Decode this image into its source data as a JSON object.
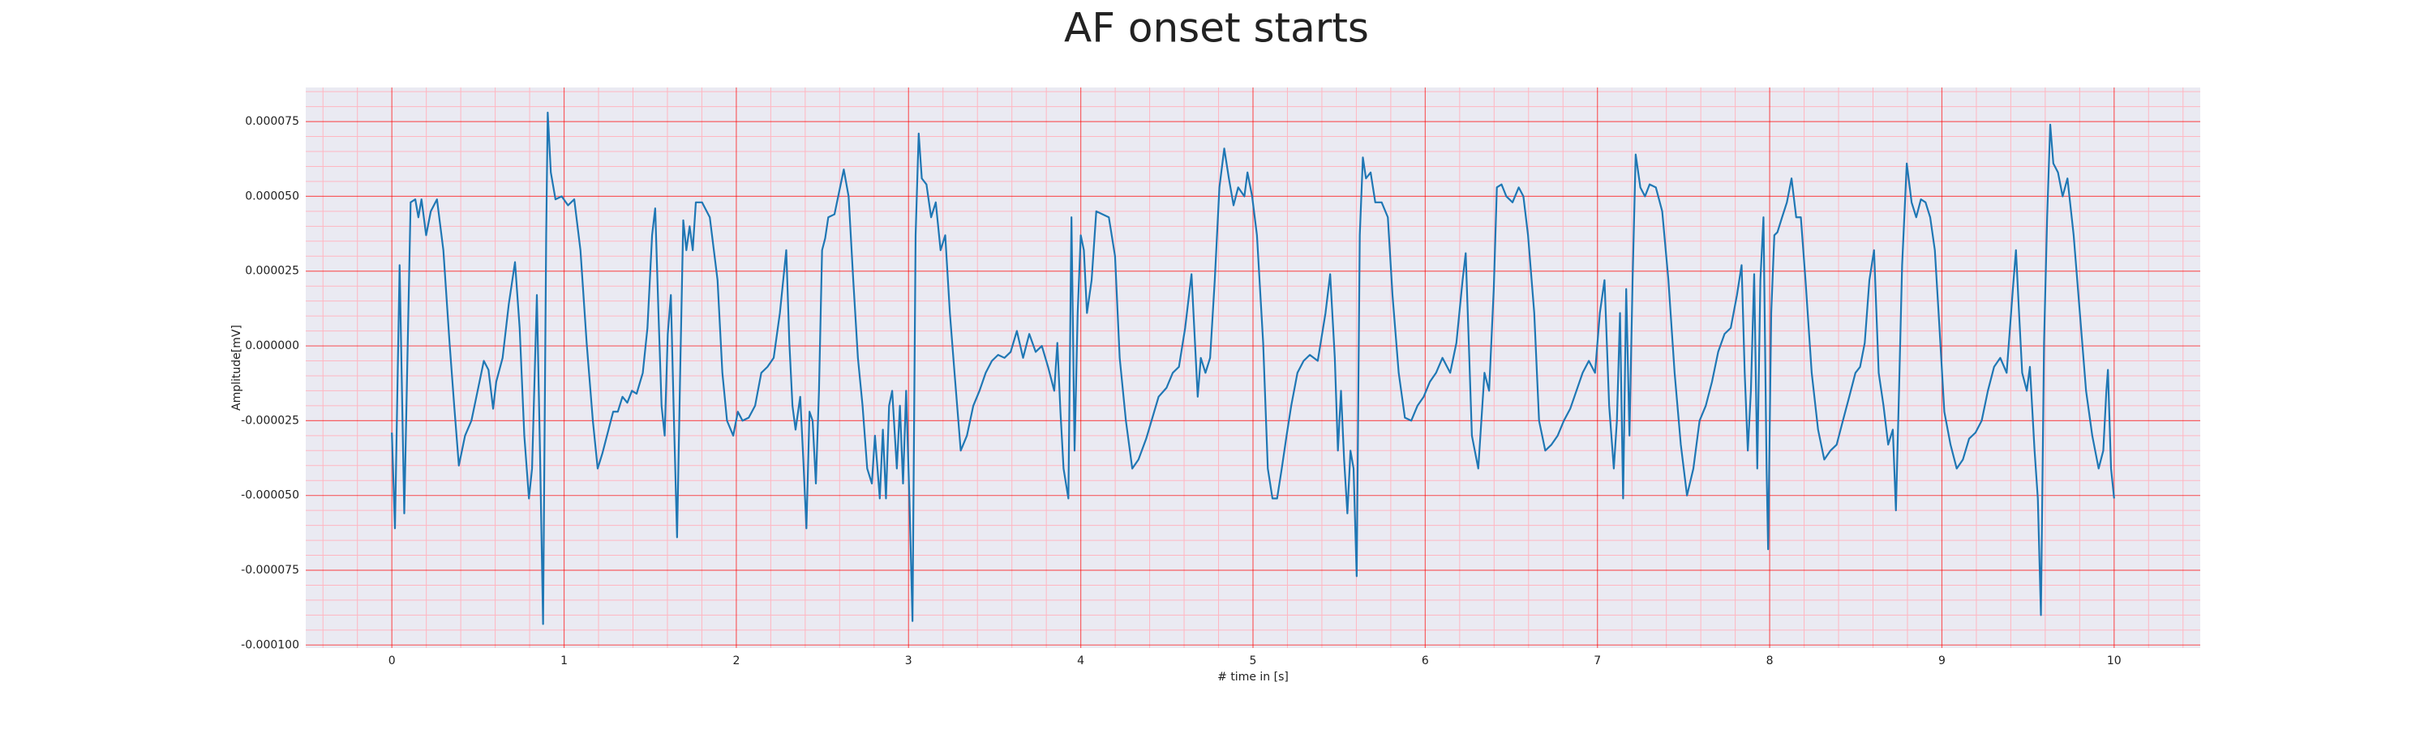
{
  "chart_data": {
    "type": "line",
    "title": "AF onset starts",
    "x_label": "# time in [s]",
    "y_label": "Amplitude[mV]",
    "color": "#1f77b4",
    "background": "#eaeaf2",
    "grid": true,
    "major_grid_color": "#ff0000",
    "minor_grid_color": "#ffb6c1",
    "xlim": [
      -0.5,
      10.5
    ],
    "ylim": [
      -0.000101,
      8.64e-05
    ],
    "xticks": [
      0,
      1,
      2,
      3,
      4,
      5,
      6,
      7,
      8,
      9,
      10
    ],
    "yticks": [
      {
        "value": -0.0001,
        "label": "-0.000100"
      },
      {
        "value": -7.5e-05,
        "label": "-0.000075"
      },
      {
        "value": -5e-05,
        "label": "-0.000050"
      },
      {
        "value": -2.5e-05,
        "label": "-0.000025"
      },
      {
        "value": 0,
        "label": "0.000000"
      },
      {
        "value": 2.5e-05,
        "label": "0.000025"
      },
      {
        "value": 5e-05,
        "label": "0.000050"
      },
      {
        "value": 7.5e-05,
        "label": "0.000075"
      }
    ],
    "xminorticks": [
      -0.4,
      -0.2,
      0.2,
      0.4,
      0.6,
      0.8,
      1.2,
      1.4,
      1.6,
      1.8,
      2.2,
      2.4,
      2.6,
      2.8,
      3.2,
      3.4,
      3.6,
      3.8,
      4.2,
      4.4,
      4.6,
      4.8,
      5.2,
      5.4,
      5.6,
      5.8,
      6.2,
      6.4,
      6.6,
      6.8,
      7.2,
      7.4,
      7.6,
      7.8,
      8.2,
      8.4,
      8.6,
      8.8,
      9.2,
      9.4,
      9.6,
      9.8,
      10.2,
      10.4
    ],
    "yminorticks": [
      -9.5e-05,
      -9e-05,
      -8.5e-05,
      -8e-05,
      -7e-05,
      -6.5e-05,
      -6e-05,
      -5.5e-05,
      -4.5e-05,
      -4e-05,
      -3.5e-05,
      -3e-05,
      -2e-05,
      -1.5e-05,
      -1e-05,
      -5e-06,
      5e-06,
      1e-05,
      1.5e-05,
      2e-05,
      3e-05,
      3.5e-05,
      4e-05,
      4.5e-05,
      5.5e-05,
      6e-05,
      6.5e-05,
      7e-05,
      8e-05,
      8.5e-05
    ],
    "x": [
      0,
      0.018,
      0.045,
      0.072,
      0.109,
      0.136,
      0.154,
      0.172,
      0.199,
      0.226,
      0.262,
      0.299,
      0.335,
      0.362,
      0.389,
      0.425,
      0.462,
      0.498,
      0.534,
      0.561,
      0.588,
      0.606,
      0.643,
      0.679,
      0.715,
      0.742,
      0.769,
      0.796,
      0.814,
      0.842,
      0.86,
      0.878,
      0.896,
      0.905,
      0.923,
      0.95,
      0.986,
      1.023,
      1.059,
      1.095,
      1.131,
      1.167,
      1.195,
      1.222,
      1.258,
      1.285,
      1.312,
      1.339,
      1.367,
      1.394,
      1.421,
      1.457,
      1.484,
      1.511,
      1.529,
      1.548,
      1.566,
      1.584,
      1.602,
      1.62,
      1.638,
      1.656,
      1.674,
      1.692,
      1.71,
      1.729,
      1.747,
      1.765,
      1.801,
      1.846,
      1.891,
      1.919,
      1.946,
      1.982,
      2.009,
      2.036,
      2.072,
      2.109,
      2.145,
      2.181,
      2.217,
      2.253,
      2.29,
      2.308,
      2.326,
      2.344,
      2.371,
      2.389,
      2.407,
      2.425,
      2.443,
      2.462,
      2.48,
      2.498,
      2.516,
      2.534,
      2.57,
      2.606,
      2.624,
      2.652,
      2.679,
      2.706,
      2.733,
      2.76,
      2.787,
      2.805,
      2.833,
      2.851,
      2.869,
      2.887,
      2.905,
      2.932,
      2.95,
      2.968,
      2.986,
      3.005,
      3.023,
      3.041,
      3.059,
      3.077,
      3.104,
      3.131,
      3.158,
      3.186,
      3.213,
      3.24,
      3.267,
      3.303,
      3.339,
      3.376,
      3.412,
      3.448,
      3.484,
      3.52,
      3.557,
      3.593,
      3.629,
      3.665,
      3.701,
      3.738,
      3.774,
      3.81,
      3.846,
      3.864,
      3.882,
      3.9,
      3.928,
      3.946,
      3.964,
      3.982,
      4,
      4.018,
      4.036,
      4.063,
      4.09,
      4.127,
      4.163,
      4.199,
      4.226,
      4.262,
      4.299,
      4.335,
      4.38,
      4.416,
      4.452,
      4.498,
      4.534,
      4.57,
      4.606,
      4.643,
      4.679,
      4.697,
      4.724,
      4.751,
      4.778,
      4.805,
      4.833,
      4.86,
      4.887,
      4.914,
      4.95,
      4.968,
      4.995,
      5.023,
      5.059,
      5.086,
      5.113,
      5.14,
      5.167,
      5.195,
      5.222,
      5.258,
      5.294,
      5.33,
      5.376,
      5.421,
      5.448,
      5.475,
      5.493,
      5.511,
      5.529,
      5.548,
      5.566,
      5.584,
      5.602,
      5.62,
      5.638,
      5.656,
      5.683,
      5.71,
      5.747,
      5.783,
      5.81,
      5.846,
      5.882,
      5.919,
      5.955,
      5.991,
      6.027,
      6.063,
      6.1,
      6.145,
      6.181,
      6.217,
      6.235,
      6.253,
      6.271,
      6.308,
      6.344,
      6.371,
      6.398,
      6.416,
      6.443,
      6.471,
      6.507,
      6.543,
      6.57,
      6.597,
      6.633,
      6.661,
      6.697,
      6.733,
      6.769,
      6.805,
      6.842,
      6.878,
      6.914,
      6.95,
      6.986,
      7.014,
      7.041,
      7.068,
      7.095,
      7.113,
      7.131,
      7.149,
      7.167,
      7.186,
      7.204,
      7.222,
      7.249,
      7.276,
      7.303,
      7.339,
      7.376,
      7.412,
      7.448,
      7.484,
      7.52,
      7.557,
      7.593,
      7.629,
      7.665,
      7.701,
      7.738,
      7.774,
      7.81,
      7.837,
      7.855,
      7.873,
      7.891,
      7.91,
      7.928,
      7.946,
      7.964,
      7.982,
      7.991,
      8.009,
      8.027,
      8.045,
      8.072,
      8.1,
      8.127,
      8.154,
      8.181,
      8.208,
      8.244,
      8.281,
      8.317,
      8.353,
      8.389,
      8.425,
      8.462,
      8.498,
      8.525,
      8.552,
      8.579,
      8.606,
      8.633,
      8.661,
      8.688,
      8.715,
      8.733,
      8.751,
      8.769,
      8.796,
      8.824,
      8.851,
      8.878,
      8.905,
      8.932,
      8.959,
      8.986,
      9.014,
      9.05,
      9.086,
      9.122,
      9.158,
      9.195,
      9.231,
      9.267,
      9.303,
      9.339,
      9.376,
      9.412,
      9.43,
      9.448,
      9.466,
      9.493,
      9.511,
      9.538,
      9.557,
      9.575,
      9.593,
      9.611,
      9.629,
      9.647,
      9.674,
      9.701,
      9.729,
      9.765,
      9.801,
      9.837,
      9.873,
      9.91,
      9.937,
      9.955,
      9.964,
      9.982,
      10
    ],
    "values": [
      -2.9e-05,
      -6.1e-05,
      2.7e-05,
      -5.6e-05,
      4.8e-05,
      4.9e-05,
      4.3e-05,
      4.9e-05,
      3.7e-05,
      4.5e-05,
      4.9e-05,
      3.2e-05,
      1e-06,
      -2e-05,
      -4e-05,
      -3e-05,
      -2.5e-05,
      -1.5e-05,
      -5e-06,
      -8e-06,
      -2.1e-05,
      -1.2e-05,
      -4e-06,
      1.4e-05,
      2.8e-05,
      6e-06,
      -3e-05,
      -5.1e-05,
      -4.1e-05,
      1.7e-05,
      -3.5e-05,
      -9.3e-05,
      3.7e-05,
      7.8e-05,
      5.8e-05,
      4.9e-05,
      5e-05,
      4.7e-05,
      4.9e-05,
      3.2e-05,
      1e-06,
      -2.5e-05,
      -4.1e-05,
      -3.6e-05,
      -2.8e-05,
      -2.2e-05,
      -2.2e-05,
      -1.7e-05,
      -1.9e-05,
      -1.5e-05,
      -1.6e-05,
      -9e-06,
      6e-06,
      3.7e-05,
      4.6e-05,
      1.1e-05,
      -2e-05,
      -3e-05,
      4e-06,
      1.7e-05,
      -2.5e-05,
      -6.4e-05,
      -9e-06,
      4.2e-05,
      3.2e-05,
      4e-05,
      3.2e-05,
      4.8e-05,
      4.8e-05,
      4.3e-05,
      2.2e-05,
      -9e-06,
      -2.5e-05,
      -3e-05,
      -2.2e-05,
      -2.5e-05,
      -2.4e-05,
      -2e-05,
      -9e-06,
      -7e-06,
      -4e-06,
      1.1e-05,
      3.2e-05,
      1e-06,
      -2e-05,
      -2.8e-05,
      -1.7e-05,
      -3.8e-05,
      -6.1e-05,
      -2.2e-05,
      -2.5e-05,
      -4.6e-05,
      -1.5e-05,
      3.2e-05,
      3.6e-05,
      4.3e-05,
      4.4e-05,
      5.4e-05,
      5.9e-05,
      5e-05,
      2.2e-05,
      -4e-06,
      -2e-05,
      -4.1e-05,
      -4.6e-05,
      -3e-05,
      -5.1e-05,
      -2.8e-05,
      -5.1e-05,
      -2e-05,
      -1.5e-05,
      -4.1e-05,
      -2e-05,
      -4.6e-05,
      -1.5e-05,
      -5.1e-05,
      -9.2e-05,
      3.7e-05,
      7.1e-05,
      5.6e-05,
      5.4e-05,
      4.3e-05,
      4.8e-05,
      3.2e-05,
      3.7e-05,
      1.1e-05,
      -9e-06,
      -3.5e-05,
      -3e-05,
      -2e-05,
      -1.5e-05,
      -9e-06,
      -5e-06,
      -3e-06,
      -4e-06,
      -2e-06,
      5e-06,
      -4e-06,
      4e-06,
      -2e-06,
      0,
      -7e-06,
      -1.5e-05,
      1e-06,
      -2.2e-05,
      -4.1e-05,
      -5.1e-05,
      4.3e-05,
      -3.5e-05,
      1.1e-05,
      3.7e-05,
      3.2e-05,
      1.1e-05,
      2.2e-05,
      4.5e-05,
      4.4e-05,
      4.3e-05,
      3e-05,
      -4e-06,
      -2.5e-05,
      -4.1e-05,
      -3.8e-05,
      -3.1e-05,
      -2.4e-05,
      -1.7e-05,
      -1.4e-05,
      -9e-06,
      -7e-06,
      6e-06,
      2.4e-05,
      -1.7e-05,
      -4e-06,
      -9e-06,
      -4e-06,
      2.2e-05,
      5.3e-05,
      6.6e-05,
      5.6e-05,
      4.7e-05,
      5.3e-05,
      5e-05,
      5.8e-05,
      5e-05,
      3.7e-05,
      1e-06,
      -4.1e-05,
      -5.1e-05,
      -5.1e-05,
      -4.1e-05,
      -3e-05,
      -2e-05,
      -9e-06,
      -5e-06,
      -3e-06,
      -5e-06,
      1.1e-05,
      2.4e-05,
      -4e-06,
      -3.5e-05,
      -1.5e-05,
      -3.8e-05,
      -5.6e-05,
      -3.5e-05,
      -4.1e-05,
      -7.7e-05,
      3.7e-05,
      6.3e-05,
      5.6e-05,
      5.8e-05,
      4.8e-05,
      4.8e-05,
      4.3e-05,
      1.7e-05,
      -9e-06,
      -2.4e-05,
      -2.5e-05,
      -2e-05,
      -1.7e-05,
      -1.2e-05,
      -9e-06,
      -4e-06,
      -9e-06,
      1e-06,
      2.2e-05,
      3.1e-05,
      1e-06,
      -3e-05,
      -4.1e-05,
      -9e-06,
      -1.5e-05,
      1.9e-05,
      5.3e-05,
      5.4e-05,
      5e-05,
      4.8e-05,
      5.3e-05,
      5e-05,
      3.7e-05,
      1.1e-05,
      -2.5e-05,
      -3.5e-05,
      -3.3e-05,
      -3e-05,
      -2.5e-05,
      -2.1e-05,
      -1.5e-05,
      -9e-06,
      -5e-06,
      -9e-06,
      1.1e-05,
      2.2e-05,
      -2e-05,
      -4.1e-05,
      -2.5e-05,
      1.1e-05,
      -5.1e-05,
      1.9e-05,
      -3e-05,
      2.2e-05,
      6.4e-05,
      5.3e-05,
      5e-05,
      5.4e-05,
      5.3e-05,
      4.5e-05,
      2.2e-05,
      -9e-06,
      -3.3e-05,
      -5e-05,
      -4.1e-05,
      -2.5e-05,
      -2e-05,
      -1.2e-05,
      -2e-06,
      4e-06,
      6e-06,
      1.7e-05,
      2.7e-05,
      -9e-06,
      -3.5e-05,
      -1.5e-05,
      2.4e-05,
      -4.1e-05,
      2.2e-05,
      4.3e-05,
      -4.1e-05,
      -6.8e-05,
      1.1e-05,
      3.7e-05,
      3.8e-05,
      4.3e-05,
      4.8e-05,
      5.6e-05,
      4.3e-05,
      4.3e-05,
      2.2e-05,
      -9e-06,
      -2.8e-05,
      -3.8e-05,
      -3.5e-05,
      -3.3e-05,
      -2.5e-05,
      -1.7e-05,
      -9e-06,
      -7e-06,
      1e-06,
      2.2e-05,
      3.2e-05,
      -9e-06,
      -2e-05,
      -3.3e-05,
      -2.8e-05,
      -5.5e-05,
      -1.5e-05,
      2.7e-05,
      6.1e-05,
      4.8e-05,
      4.3e-05,
      4.9e-05,
      4.8e-05,
      4.3e-05,
      3.2e-05,
      6e-06,
      -2.2e-05,
      -3.3e-05,
      -4.1e-05,
      -3.8e-05,
      -3.1e-05,
      -2.9e-05,
      -2.5e-05,
      -1.5e-05,
      -7e-06,
      -4e-06,
      -9e-06,
      1.9e-05,
      3.2e-05,
      1.1e-05,
      -9e-06,
      -1.5e-05,
      -7e-06,
      -3.5e-05,
      -5.1e-05,
      -9e-05,
      1e-06,
      4.3e-05,
      7.4e-05,
      6.1e-05,
      5.8e-05,
      5e-05,
      5.6e-05,
      3.7e-05,
      1.1e-05,
      -1.5e-05,
      -3e-05,
      -4.1e-05,
      -3.5e-05,
      -1.5e-05,
      -8e-06,
      -4.1e-05,
      -5.1e-05
    ]
  }
}
